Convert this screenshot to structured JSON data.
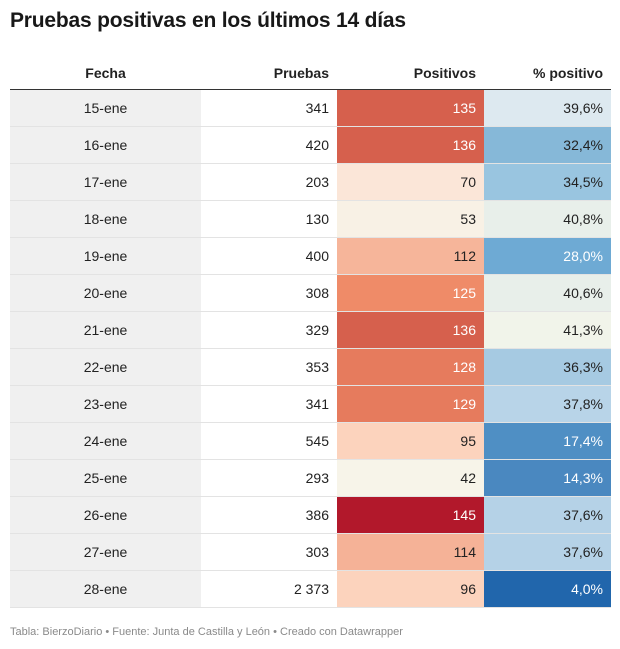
{
  "title": "Pruebas positivas en los últimos 14 días",
  "footer": "Tabla: BierzoDiario • Fuente: Junta de Castilla y León • Creado con Datawrapper",
  "chart_data": {
    "type": "table",
    "title": "Pruebas positivas en los últimos 14 días",
    "columns": [
      "Fecha",
      "Pruebas",
      "Positivos",
      "% positivo"
    ],
    "rows": [
      {
        "fecha": "15-ene",
        "pruebas": "341",
        "positivos": "135",
        "pct": "39,6%"
      },
      {
        "fecha": "16-ene",
        "pruebas": "420",
        "positivos": "136",
        "pct": "32,4%"
      },
      {
        "fecha": "17-ene",
        "pruebas": "203",
        "positivos": "70",
        "pct": "34,5%"
      },
      {
        "fecha": "18-ene",
        "pruebas": "130",
        "positivos": "53",
        "pct": "40,8%"
      },
      {
        "fecha": "19-ene",
        "pruebas": "400",
        "positivos": "112",
        "pct": "28,0%"
      },
      {
        "fecha": "20-ene",
        "pruebas": "308",
        "positivos": "125",
        "pct": "40,6%"
      },
      {
        "fecha": "21-ene",
        "pruebas": "329",
        "positivos": "136",
        "pct": "41,3%"
      },
      {
        "fecha": "22-ene",
        "pruebas": "353",
        "positivos": "128",
        "pct": "36,3%"
      },
      {
        "fecha": "23-ene",
        "pruebas": "341",
        "positivos": "129",
        "pct": "37,8%"
      },
      {
        "fecha": "24-ene",
        "pruebas": "545",
        "positivos": "95",
        "pct": "17,4%"
      },
      {
        "fecha": "25-ene",
        "pruebas": "293",
        "positivos": "42",
        "pct": "14,3%"
      },
      {
        "fecha": "26-ene",
        "pruebas": "386",
        "positivos": "145",
        "pct": "37,6%"
      },
      {
        "fecha": "27-ene",
        "pruebas": "303",
        "positivos": "114",
        "pct": "37,6%"
      },
      {
        "fecha": "28-ene",
        "pruebas": "2 373",
        "positivos": "96",
        "pct": "4,0%"
      }
    ]
  },
  "colors": {
    "positivos_cells": [
      "#d6604d",
      "#d6604d",
      "#fbe6d8",
      "#f8f1e5",
      "#f6b59a",
      "#ef8b68",
      "#d6604d",
      "#e67b5d",
      "#e67b5d",
      "#fcd3bd",
      "#f7f4e9",
      "#b2182b",
      "#f5b297",
      "#fcd3bd"
    ],
    "positivos_text": [
      "#ffffff",
      "#ffffff",
      "#222222",
      "#222222",
      "#222222",
      "#ffffff",
      "#ffffff",
      "#ffffff",
      "#ffffff",
      "#222222",
      "#222222",
      "#ffffff",
      "#222222",
      "#222222"
    ],
    "pct_cells": [
      "#dde9f0",
      "#86b8d8",
      "#99c5e0",
      "#e8efea",
      "#6eaad4",
      "#e8efea",
      "#f1f4ea",
      "#a6cae2",
      "#b8d4e8",
      "#4f8fc4",
      "#4a88c0",
      "#b5d2e7",
      "#b5d2e7",
      "#2166ac"
    ],
    "pct_text": [
      "#222222",
      "#222222",
      "#222222",
      "#222222",
      "#ffffff",
      "#222222",
      "#222222",
      "#222222",
      "#222222",
      "#ffffff",
      "#ffffff",
      "#222222",
      "#222222",
      "#ffffff"
    ]
  }
}
